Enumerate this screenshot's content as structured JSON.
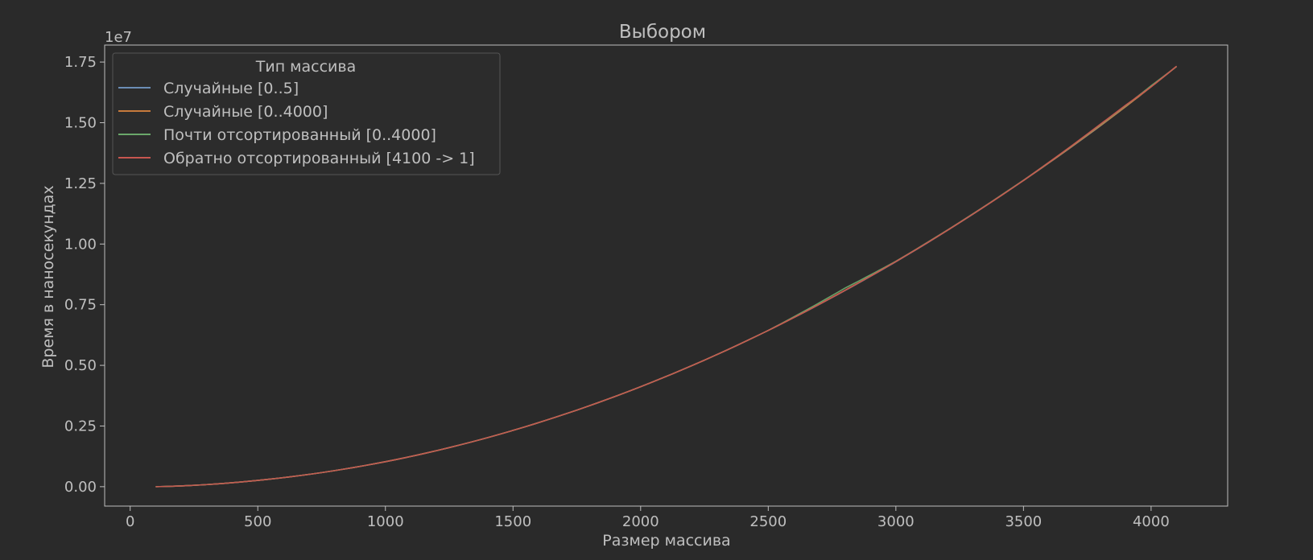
{
  "chart_data": {
    "type": "line",
    "title": "Выбором",
    "xlabel": "Размер массива",
    "ylabel": "Время в наносекундах",
    "y_offset_label": "1e7",
    "xlim": [
      -100,
      4300
    ],
    "ylim": [
      -0.08,
      1.82
    ],
    "x_ticks": [
      0,
      500,
      1000,
      1500,
      2000,
      2500,
      3000,
      3500,
      4000
    ],
    "x_tick_labels": [
      "0",
      "500",
      "1000",
      "1500",
      "2000",
      "2500",
      "3000",
      "3500",
      "4000"
    ],
    "y_ticks": [
      0,
      0.25,
      0.5,
      0.75,
      1.0,
      1.25,
      1.5,
      1.75
    ],
    "y_tick_labels": [
      "0.00",
      "0.25",
      "0.50",
      "0.75",
      "1.00",
      "1.25",
      "1.50",
      "1.75"
    ],
    "grid": false,
    "legend": {
      "title": "Тип массива",
      "placement": "upper-left"
    },
    "x": [
      100,
      500,
      1000,
      1500,
      2000,
      2500,
      2800,
      3000,
      3500,
      3800,
      3900,
      4000,
      4100
    ],
    "series": [
      {
        "name": "Случайные [0..5]",
        "color": "#6b8db5",
        "values": [
          0.0,
          0.026,
          0.103,
          0.232,
          0.412,
          0.644,
          0.808,
          0.927,
          1.262,
          1.486,
          1.566,
          1.648,
          1.732
        ]
      },
      {
        "name": "Случайные [0..4000]",
        "color": "#c77a3c",
        "values": [
          0.0,
          0.026,
          0.103,
          0.232,
          0.412,
          0.644,
          0.809,
          0.928,
          1.262,
          1.487,
          1.566,
          1.648,
          1.732
        ]
      },
      {
        "name": "Почти отсортированный [0..4000]",
        "color": "#6aa86a",
        "values": [
          0.0,
          0.026,
          0.103,
          0.232,
          0.412,
          0.644,
          0.818,
          0.929,
          1.263,
          1.491,
          1.57,
          1.652,
          1.732
        ]
      },
      {
        "name": "Обратно отсортированный [4100 -> 1]",
        "color": "#c8564f",
        "values": [
          0.0,
          0.026,
          0.103,
          0.232,
          0.412,
          0.644,
          0.809,
          0.928,
          1.262,
          1.493,
          1.572,
          1.648,
          1.733
        ]
      }
    ]
  },
  "colors": {
    "background": "#2a2a2a",
    "axes_frame": "#bfbfbf",
    "text": "#bfbfbf",
    "legend_face": "#2c2c2c",
    "legend_edge": "#555555"
  }
}
